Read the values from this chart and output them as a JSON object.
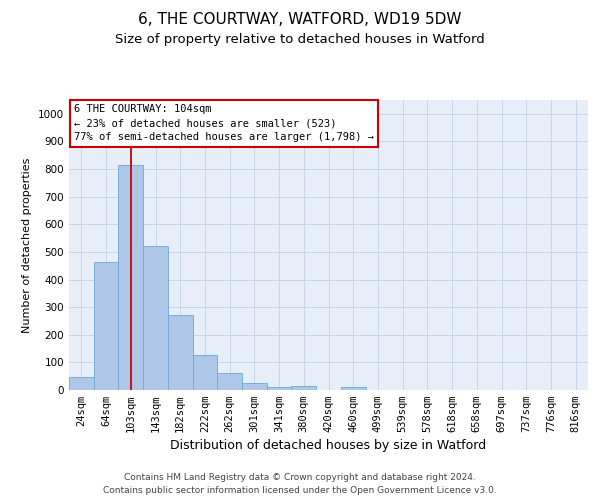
{
  "title": "6, THE COURTWAY, WATFORD, WD19 5DW",
  "subtitle": "Size of property relative to detached houses in Watford",
  "xlabel": "Distribution of detached houses by size in Watford",
  "ylabel": "Number of detached properties",
  "categories": [
    "24sqm",
    "64sqm",
    "103sqm",
    "143sqm",
    "182sqm",
    "222sqm",
    "262sqm",
    "301sqm",
    "341sqm",
    "380sqm",
    "420sqm",
    "460sqm",
    "499sqm",
    "539sqm",
    "578sqm",
    "618sqm",
    "658sqm",
    "697sqm",
    "737sqm",
    "776sqm",
    "816sqm"
  ],
  "bar_heights": [
    46,
    462,
    813,
    521,
    272,
    127,
    60,
    25,
    12,
    14,
    0,
    10,
    0,
    0,
    0,
    0,
    0,
    0,
    0,
    0,
    0
  ],
  "bar_color": "#aec6e8",
  "bar_edge_color": "#6aaad4",
  "vline_x_idx": 2,
  "vline_color": "#cc0000",
  "annotation_line1": "6 THE COURTWAY: 104sqm",
  "annotation_line2": "← 23% of detached houses are smaller (523)",
  "annotation_line3": "77% of semi-detached houses are larger (1,798) →",
  "annotation_box_edgecolor": "#cc0000",
  "ylim": [
    0,
    1050
  ],
  "yticks": [
    0,
    100,
    200,
    300,
    400,
    500,
    600,
    700,
    800,
    900,
    1000
  ],
  "grid_color": "#c8d4e8",
  "bg_color": "#e8eef8",
  "footer_line1": "Contains HM Land Registry data © Crown copyright and database right 2024.",
  "footer_line2": "Contains public sector information licensed under the Open Government Licence v3.0.",
  "title_fontsize": 11,
  "subtitle_fontsize": 9.5,
  "xlabel_fontsize": 9,
  "ylabel_fontsize": 8,
  "tick_fontsize": 7.5,
  "annotation_fontsize": 7.5,
  "footer_fontsize": 6.5
}
